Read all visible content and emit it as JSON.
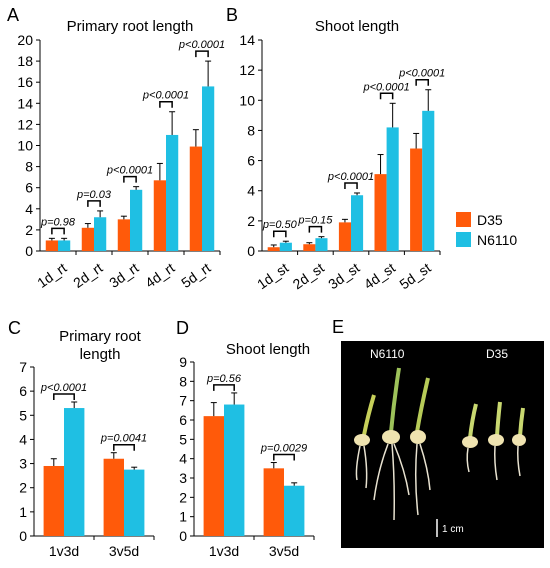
{
  "colors": {
    "D35": "#ff5a0a",
    "N6110": "#1fbfe3",
    "photo_bg": "#000000"
  },
  "legend": {
    "items": [
      "D35",
      "N6110"
    ]
  },
  "photo": {
    "letter": "E",
    "label_left": "N6110",
    "label_right": "D35",
    "scale_label": "1 cm"
  },
  "chart_data": [
    {
      "letter": "A",
      "type": "bar",
      "title": [
        "Primary root length"
      ],
      "categories": [
        "1d_rt",
        "2d_rt",
        "3d_rt",
        "4d_rt",
        "5d_rt"
      ],
      "cat_rotate": true,
      "ylim": [
        0,
        20
      ],
      "ystep": 2,
      "series": [
        {
          "name": "D35",
          "values": [
            1.0,
            2.2,
            3.0,
            6.7,
            9.9
          ],
          "errors": [
            0.2,
            0.4,
            0.3,
            1.6,
            1.6
          ]
        },
        {
          "name": "N6110",
          "values": [
            1.0,
            3.2,
            5.8,
            11.0,
            15.6
          ],
          "errors": [
            0.2,
            0.6,
            0.3,
            2.2,
            2.4
          ]
        }
      ],
      "pvalues": [
        "p=0.98",
        "p=0.03",
        "p<0.0001",
        "p<0.0001",
        "p<0.0001"
      ]
    },
    {
      "letter": "B",
      "type": "bar",
      "title": [
        "Shoot length"
      ],
      "categories": [
        "1d_st",
        "2d_st",
        "3d_st",
        "4d_st",
        "5d_st"
      ],
      "cat_rotate": true,
      "ylim": [
        0,
        14
      ],
      "ystep": 2,
      "series": [
        {
          "name": "D35",
          "values": [
            0.25,
            0.45,
            1.9,
            5.1,
            6.8
          ],
          "errors": [
            0.15,
            0.1,
            0.2,
            1.3,
            1.0
          ]
        },
        {
          "name": "N6110",
          "values": [
            0.55,
            0.85,
            3.7,
            8.2,
            9.3
          ],
          "errors": [
            0.1,
            0.1,
            0.15,
            1.6,
            1.4
          ]
        }
      ],
      "pvalues": [
        "p=0.50",
        "p=0.15",
        "p<0.0001",
        "p<0.0001",
        "p<0.0001"
      ]
    },
    {
      "letter": "C",
      "type": "bar",
      "title": [
        "Primary root",
        "length"
      ],
      "categories": [
        "1v3d",
        "3v5d"
      ],
      "cat_rotate": false,
      "ylim": [
        0,
        7
      ],
      "ystep": 1,
      "series": [
        {
          "name": "D35",
          "values": [
            2.9,
            3.2
          ],
          "errors": [
            0.3,
            0.25
          ]
        },
        {
          "name": "N6110",
          "values": [
            5.3,
            2.75
          ],
          "errors": [
            0.25,
            0.1
          ]
        }
      ],
      "pvalues": [
        "p<0.0001",
        "p=0.0041"
      ]
    },
    {
      "letter": "D",
      "type": "bar",
      "title": [
        "Shoot length"
      ],
      "categories": [
        "1v3d",
        "3v5d"
      ],
      "cat_rotate": false,
      "ylim": [
        0,
        9
      ],
      "ystep": 1,
      "series": [
        {
          "name": "D35",
          "values": [
            6.2,
            3.5
          ],
          "errors": [
            0.7,
            0.3
          ]
        },
        {
          "name": "N6110",
          "values": [
            6.8,
            2.6
          ],
          "errors": [
            0.6,
            0.15
          ]
        }
      ],
      "pvalues": [
        "p=0.56",
        "p=0.0029"
      ]
    }
  ]
}
